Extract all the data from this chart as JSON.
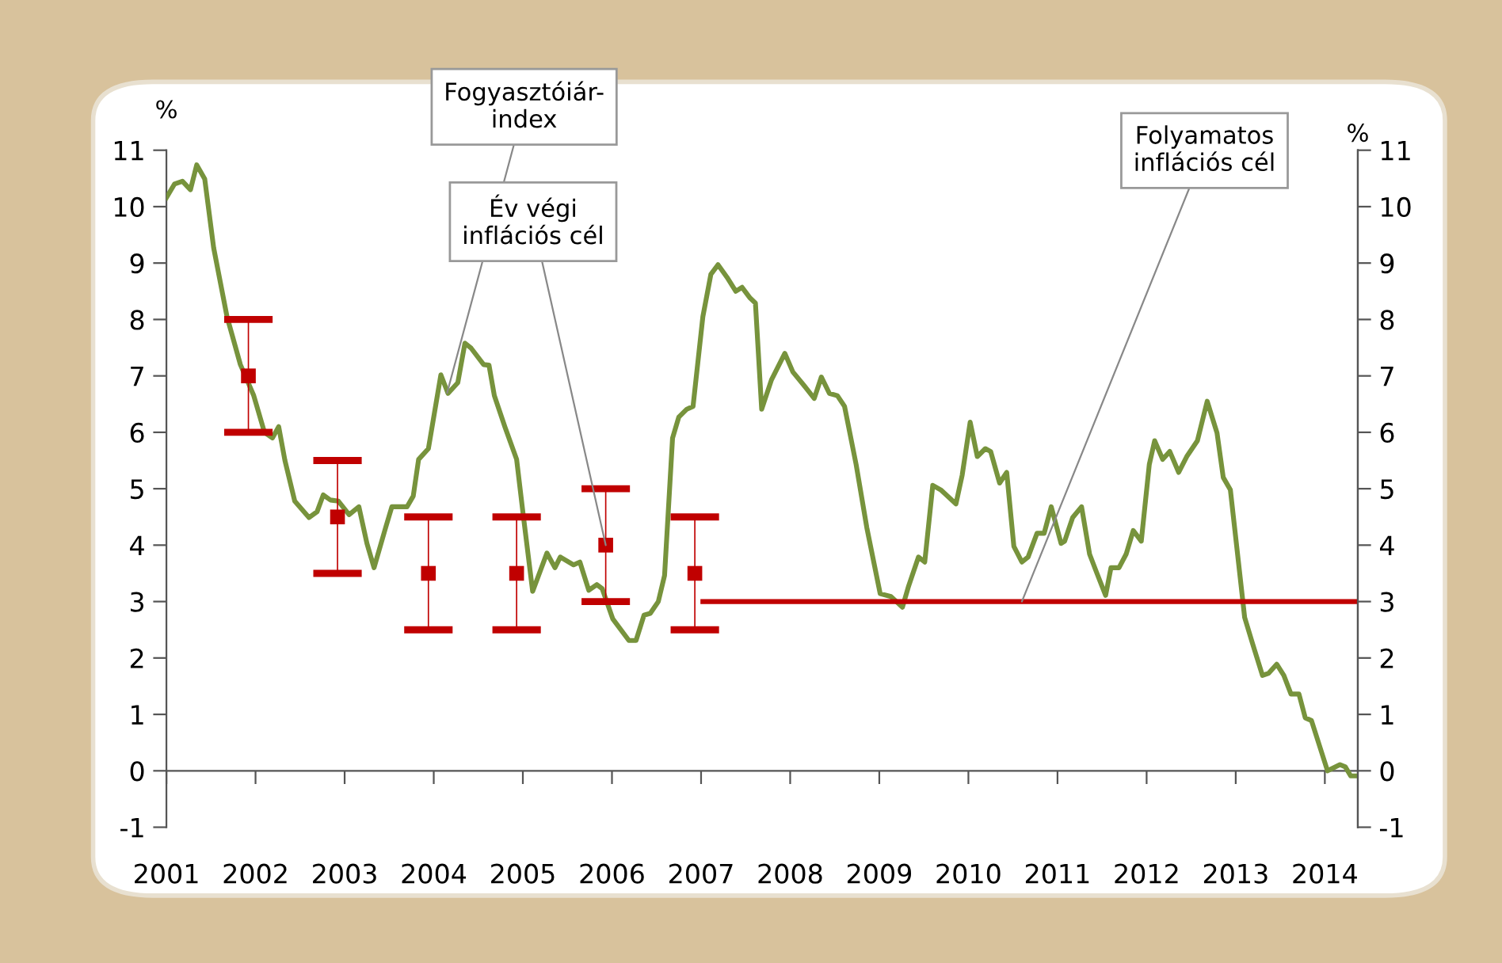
{
  "chart_data": {
    "type": "line",
    "ylabel": "%",
    "y2label": "%",
    "xlim": [
      2001,
      2014.37
    ],
    "xticks": [
      2001,
      2002,
      2003,
      2004,
      2005,
      2006,
      2007,
      2008,
      2009,
      2010,
      2011,
      2012,
      2013,
      2014
    ],
    "ylim": [
      -1,
      11
    ],
    "yticks": [
      -1,
      0,
      1,
      2,
      3,
      4,
      5,
      6,
      7,
      8,
      9,
      10,
      11
    ],
    "y2lim": [
      -1,
      11
    ],
    "y2ticks": [
      -1,
      0,
      1,
      2,
      3,
      4,
      5,
      6,
      7,
      8,
      9,
      10,
      11
    ],
    "legend": false,
    "series": [
      {
        "color": "#77933c",
        "x": [
          2001.0,
          2001.09,
          2001.18,
          2001.27,
          2001.34,
          2001.43,
          2001.53,
          2001.68,
          2001.83,
          2001.98,
          2002.1,
          2002.19,
          2002.26,
          2002.33,
          2002.44,
          2002.6,
          2002.69,
          2002.76,
          2002.84,
          2002.93,
          2003.05,
          2003.16,
          2003.25,
          2003.33,
          2003.46,
          2003.53,
          2003.7,
          2003.77,
          2003.83,
          2003.94,
          2004.08,
          2004.16,
          2004.27,
          2004.35,
          2004.42,
          2004.56,
          2004.62,
          2004.68,
          2004.8,
          2004.93,
          2005.0,
          2005.11,
          2005.27,
          2005.36,
          2005.42,
          2005.57,
          2005.64,
          2005.74,
          2005.83,
          2005.89,
          2006.01,
          2006.19,
          2006.27,
          2006.36,
          2006.43,
          2006.52,
          2006.59,
          2006.68,
          2006.75,
          2006.84,
          2006.91,
          2007.02,
          2007.11,
          2007.19,
          2007.29,
          2007.39,
          2007.46,
          2007.55,
          2007.61,
          2007.68,
          2007.79,
          2007.94,
          2008.03,
          2008.15,
          2008.27,
          2008.35,
          2008.44,
          2008.53,
          2008.61,
          2008.74,
          2008.86,
          2009.01,
          2009.13,
          2009.26,
          2009.33,
          2009.44,
          2009.51,
          2009.6,
          2009.69,
          2009.86,
          2009.93,
          2010.02,
          2010.1,
          2010.19,
          2010.25,
          2010.35,
          2010.43,
          2010.51,
          2010.6,
          2010.67,
          2010.77,
          2010.85,
          2010.93,
          2011.04,
          2011.08,
          2011.17,
          2011.27,
          2011.36,
          2011.44,
          2011.54,
          2011.6,
          2011.69,
          2011.77,
          2011.85,
          2011.94,
          2012.03,
          2012.09,
          2012.18,
          2012.26,
          2012.36,
          2012.45,
          2012.57,
          2012.68,
          2012.79,
          2012.86,
          2012.94,
          2013.1,
          2013.19,
          2013.3,
          2013.37,
          2013.46,
          2013.54,
          2013.62,
          2013.71,
          2013.78,
          2013.85,
          2014.03,
          2014.17,
          2014.23,
          2014.29,
          2014.36
        ],
        "values": [
          10.16,
          10.4,
          10.45,
          10.3,
          10.74,
          10.49,
          9.27,
          8.05,
          7.2,
          6.65,
          6.0,
          5.9,
          6.1,
          5.5,
          4.78,
          4.49,
          4.59,
          4.89,
          4.8,
          4.78,
          4.54,
          4.68,
          4.03,
          3.6,
          4.31,
          4.68,
          4.68,
          4.87,
          5.52,
          5.71,
          7.02,
          6.69,
          6.88,
          7.58,
          7.49,
          7.2,
          7.19,
          6.65,
          6.09,
          5.52,
          4.59,
          3.18,
          3.86,
          3.6,
          3.79,
          3.65,
          3.7,
          3.2,
          3.3,
          3.23,
          2.69,
          2.31,
          2.31,
          2.76,
          2.79,
          3.0,
          3.46,
          5.9,
          6.27,
          6.41,
          6.46,
          8.05,
          8.8,
          8.97,
          8.75,
          8.5,
          8.57,
          8.38,
          8.29,
          6.41,
          6.93,
          7.4,
          7.07,
          6.84,
          6.6,
          6.98,
          6.69,
          6.65,
          6.46,
          5.43,
          4.31,
          3.14,
          3.09,
          2.9,
          3.28,
          3.79,
          3.7,
          5.06,
          4.98,
          4.73,
          5.24,
          6.18,
          5.57,
          5.71,
          5.66,
          5.1,
          5.29,
          3.98,
          3.7,
          3.79,
          4.21,
          4.21,
          4.68,
          4.03,
          4.07,
          4.49,
          4.68,
          3.84,
          3.51,
          3.11,
          3.6,
          3.6,
          3.84,
          4.26,
          4.07,
          5.43,
          5.85,
          5.52,
          5.66,
          5.29,
          5.57,
          5.85,
          6.55,
          5.99,
          5.2,
          4.98,
          2.72,
          2.25,
          1.69,
          1.73,
          1.89,
          1.69,
          1.36,
          1.36,
          0.94,
          0.89,
          0.0,
          0.11,
          0.07,
          -0.09,
          -0.09
        ]
      },
      {
        "color": "#c00000",
        "x": [
          2007.02,
          2014.37
        ],
        "values": [
          3,
          3
        ]
      },
      {
        "type": "scatter",
        "marker": "square",
        "color": "#c00000",
        "x": [
          2001.92,
          2002.92,
          2003.94,
          2004.93,
          2005.93,
          2006.93
        ],
        "values": [
          7,
          4.5,
          3.5,
          3.5,
          4,
          3.5
        ],
        "errors": [
          1,
          1,
          1,
          1,
          1,
          1
        ]
      }
    ],
    "annotations": [
      {
        "text": "Fogyasztóiár-\nindex",
        "x": 2004.15,
        "y": 6.7
      },
      {
        "text": "Év végi\ninflációs cél",
        "x": 2005.93,
        "y": 4
      },
      {
        "text": "Folyamatos\ninflációs cél",
        "x": 2010.6,
        "y": 3
      }
    ]
  }
}
